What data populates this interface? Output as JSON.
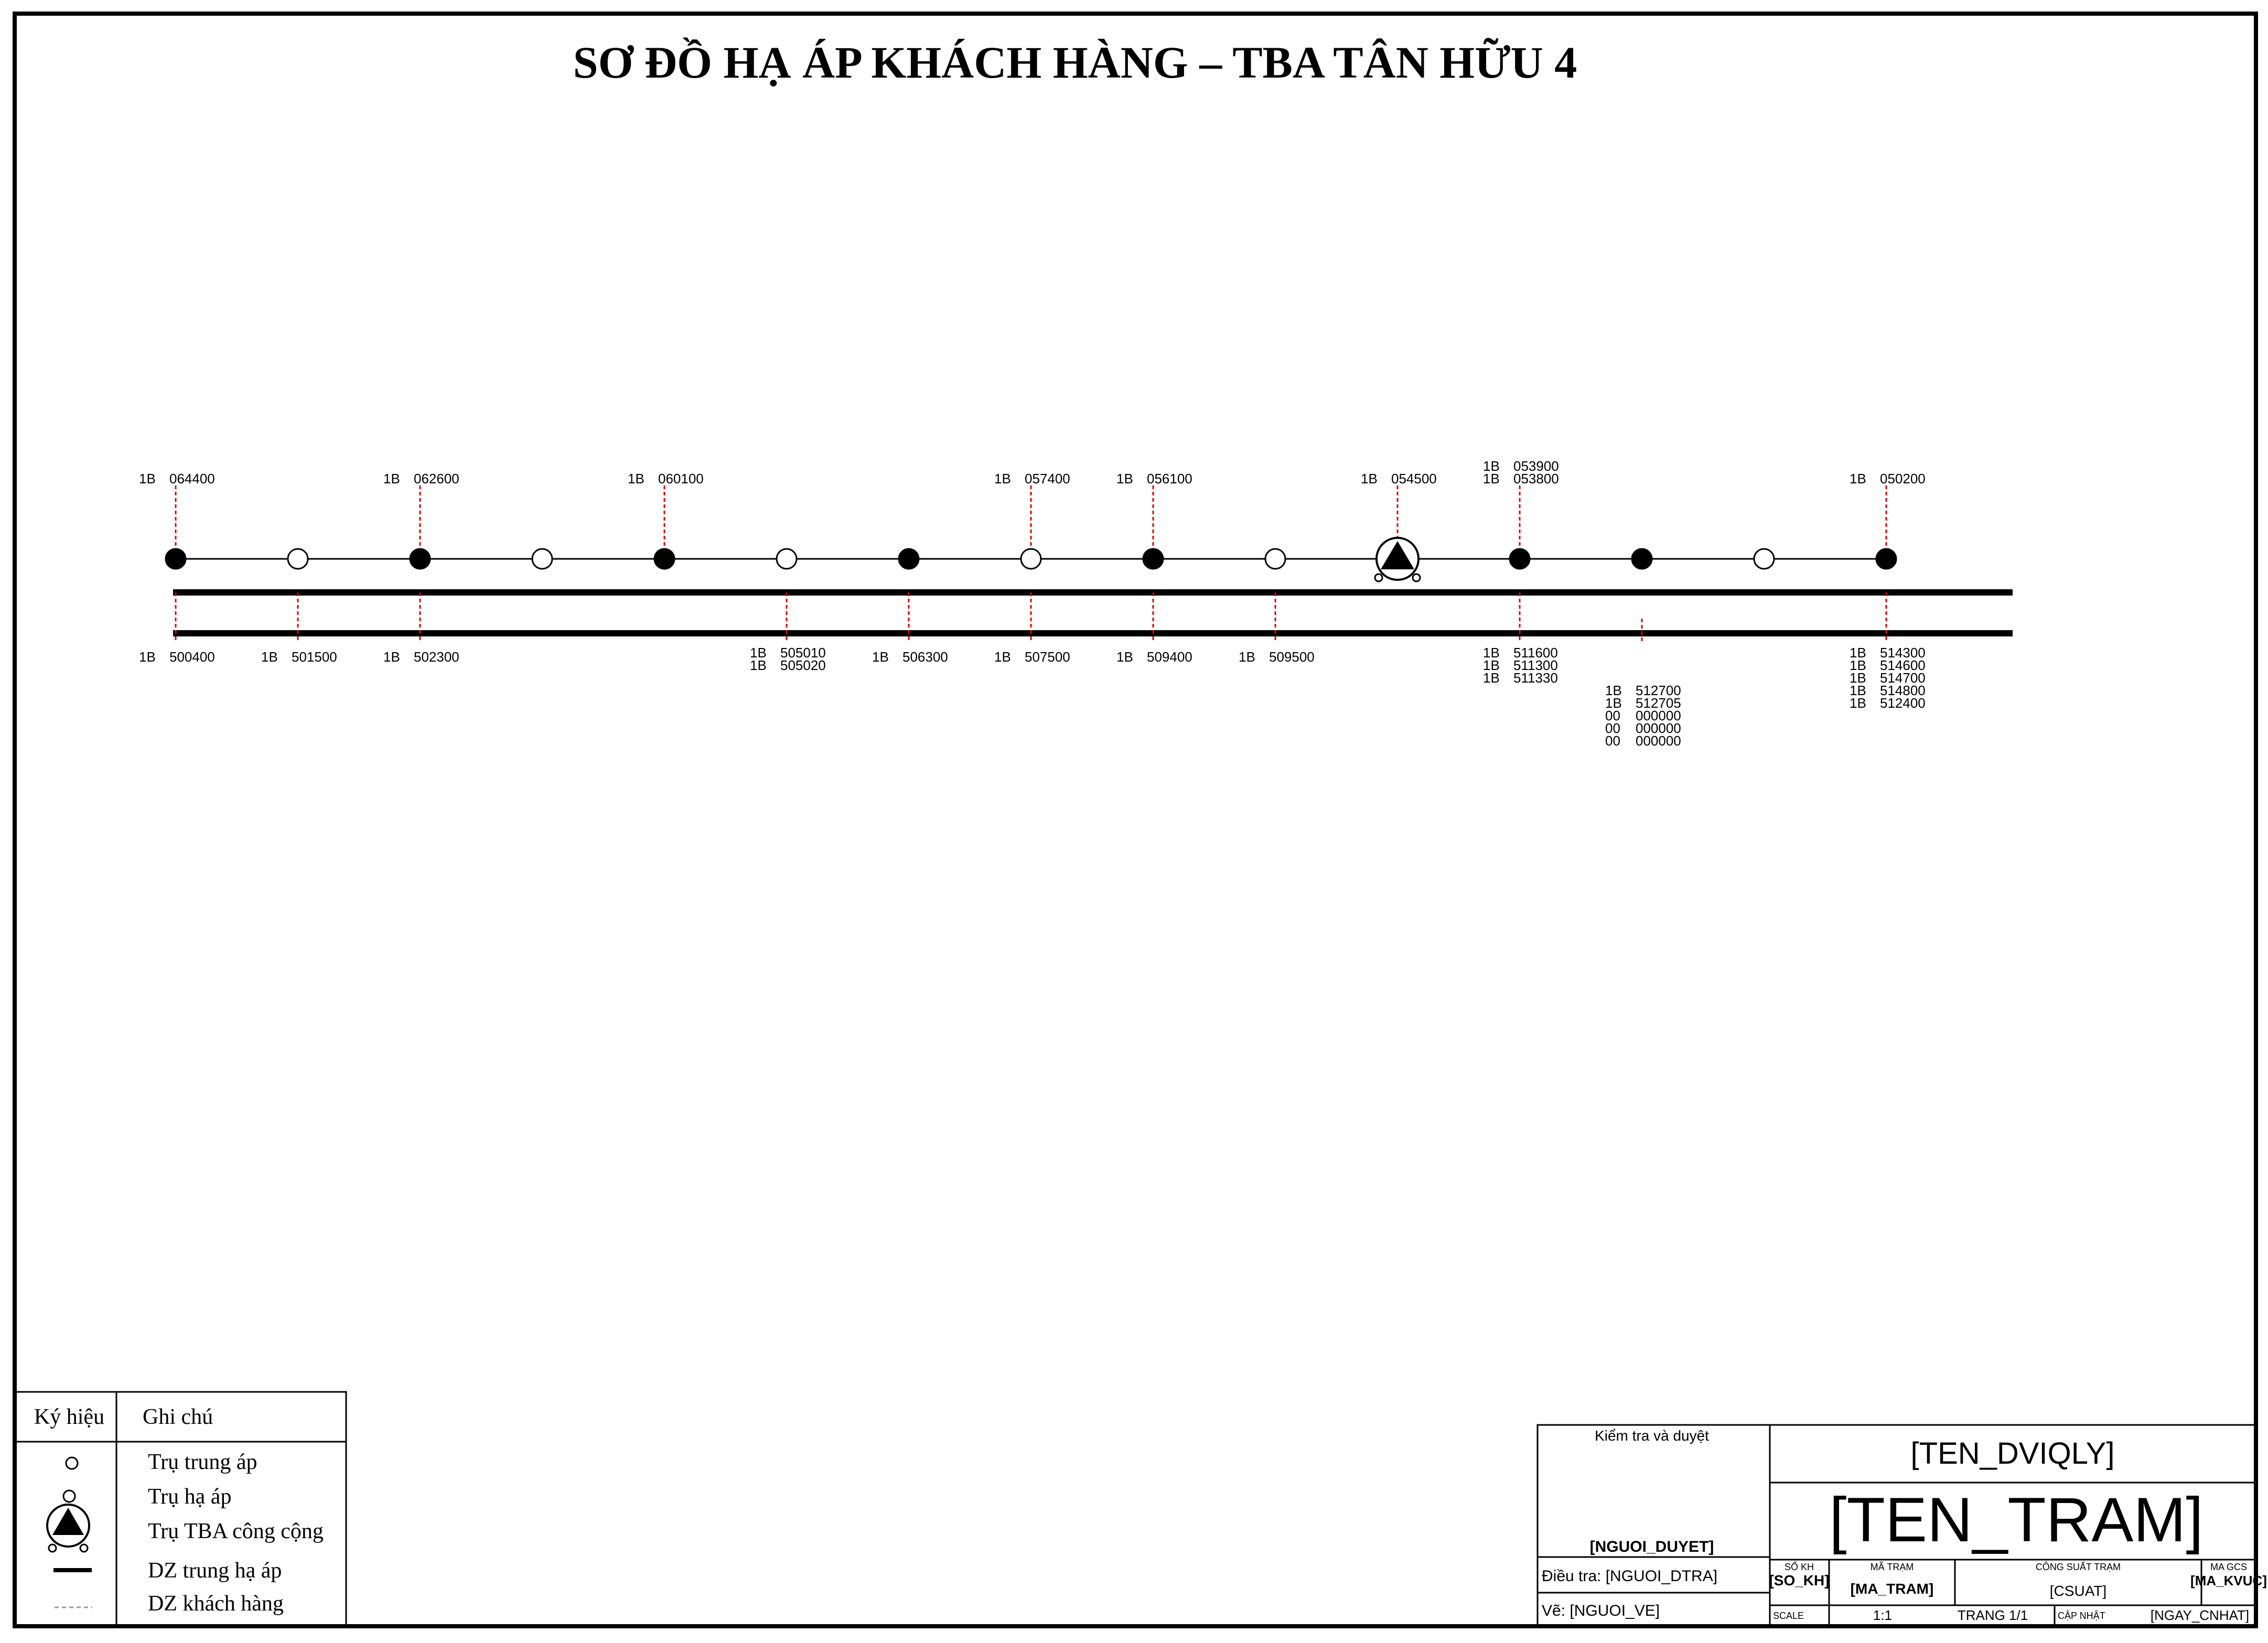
{
  "title": "SƠ ĐỒ HẠ ÁP KHÁCH HÀNG – TBA TÂN HỮU 4",
  "poles": [
    {
      "type": "ha_ap",
      "top": [
        {
          "p": "1B",
          "c": "064400"
        }
      ],
      "bottom": [
        {
          "p": "1B",
          "c": "500400"
        }
      ]
    },
    {
      "type": "trung_ap",
      "top": [],
      "bottom": [
        {
          "p": "1B",
          "c": "501500"
        }
      ]
    },
    {
      "type": "ha_ap",
      "top": [
        {
          "p": "1B",
          "c": "062600"
        }
      ],
      "bottom": [
        {
          "p": "1B",
          "c": "502300"
        }
      ]
    },
    {
      "type": "trung_ap",
      "top": [],
      "bottom": []
    },
    {
      "type": "ha_ap",
      "top": [
        {
          "p": "1B",
          "c": "060100"
        }
      ],
      "bottom": []
    },
    {
      "type": "trung_ap",
      "top": [],
      "bottom": [
        {
          "p": "1B",
          "c": "505010"
        },
        {
          "p": "1B",
          "c": "505020"
        }
      ]
    },
    {
      "type": "ha_ap",
      "top": [],
      "bottom": [
        {
          "p": "1B",
          "c": "506300"
        }
      ]
    },
    {
      "type": "trung_ap",
      "top": [
        {
          "p": "1B",
          "c": "057400"
        }
      ],
      "bottom": [
        {
          "p": "1B",
          "c": "507500"
        }
      ]
    },
    {
      "type": "ha_ap",
      "top": [
        {
          "p": "1B",
          "c": "056100"
        }
      ],
      "bottom": [
        {
          "p": "1B",
          "c": "509400"
        }
      ]
    },
    {
      "type": "trung_ap",
      "top": [],
      "bottom": [
        {
          "p": "1B",
          "c": "509500"
        }
      ]
    },
    {
      "type": "tba",
      "top": [
        {
          "p": "1B",
          "c": "054500"
        }
      ],
      "bottom": []
    },
    {
      "type": "ha_ap",
      "top": [
        {
          "p": "1B",
          "c": "053900"
        },
        {
          "p": "1B",
          "c": "053800"
        }
      ],
      "bottom": [
        {
          "p": "1B",
          "c": "511600"
        },
        {
          "p": "1B",
          "c": "511300"
        },
        {
          "p": "1B",
          "c": "511330"
        }
      ]
    },
    {
      "type": "ha_ap",
      "top": [],
      "bottom": [
        {
          "p": "1B",
          "c": "512700"
        },
        {
          "p": "1B",
          "c": "512705"
        },
        {
          "p": "00",
          "c": "000000"
        },
        {
          "p": "00",
          "c": "000000"
        },
        {
          "p": "00",
          "c": "000000"
        }
      ]
    },
    {
      "type": "trung_ap",
      "top": [],
      "bottom": []
    },
    {
      "type": "ha_ap",
      "top": [
        {
          "p": "1B",
          "c": "050200"
        }
      ],
      "bottom": [
        {
          "p": "1B",
          "c": "514300"
        },
        {
          "p": "1B",
          "c": "514600"
        },
        {
          "p": "1B",
          "c": "514700"
        },
        {
          "p": "1B",
          "c": "514800"
        },
        {
          "p": "1B",
          "c": "512400"
        }
      ]
    }
  ],
  "legend": {
    "header_symbol": "Ký hiệu",
    "header_note": "Ghi chú",
    "items": [
      "Trụ trung áp",
      "Trụ hạ áp",
      "Trụ TBA công cộng",
      "DZ trung hạ áp",
      "DZ khách hàng"
    ]
  },
  "title_block": {
    "kiem_tra_label": "Kiểm tra và duyệt",
    "nguoi_duyet": "[NGUOI_DUYET]",
    "dieu_tra": "Điều tra: [NGUOI_DTRA]",
    "ve": "Vẽ: [NGUOI_VE]",
    "ten_dviqly": "[TEN_DVIQLY]",
    "ten_tram": "[TEN_TRAM]",
    "so_kh_label": "SỐ KH",
    "so_kh_value": "[SO_KH]",
    "ma_tram_label": "MÃ TRẠM",
    "ma_tram_value": "[MA_TRAM]",
    "cong_suat_label": "CÔNG SUẤT TRẠM",
    "cong_suat_value": "[CSUAT]",
    "ma_gcs_label": "MA GCS",
    "ma_gcs_value": "[MA_KVUC]",
    "scale_label": "SCALE",
    "scale_value": "1:1",
    "trang": "TRANG 1/1",
    "cap_nhat_label": "CẬP NHẬT",
    "cap_nhat_value": "[NGAY_CNHAT]"
  },
  "colors": {
    "line": "#000000",
    "customer_drop": "#e00000",
    "frame": "#000000"
  }
}
